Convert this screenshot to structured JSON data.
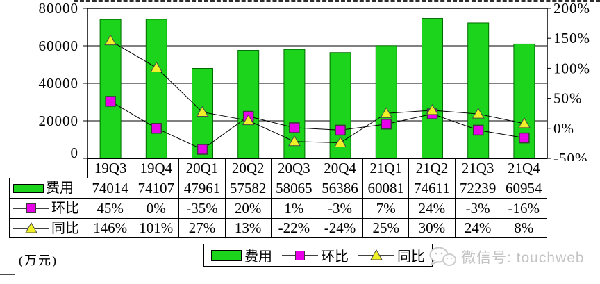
{
  "chart_data": {
    "type": "combo",
    "title": "",
    "categories": [
      "19Q3",
      "19Q4",
      "20Q1",
      "20Q2",
      "20Q3",
      "20Q4",
      "21Q1",
      "21Q2",
      "21Q3",
      "21Q4"
    ],
    "series": [
      {
        "name": "费用",
        "type": "bar",
        "axis": "left",
        "marker": "bar",
        "values": [
          74014,
          74107,
          47961,
          57582,
          58065,
          56386,
          60081,
          74611,
          72239,
          60954
        ]
      },
      {
        "name": "环比",
        "type": "line",
        "axis": "right",
        "marker": "square",
        "values": [
          45,
          0,
          -35,
          20,
          1,
          -3,
          7,
          24,
          -3,
          -16
        ]
      },
      {
        "name": "同比",
        "type": "line",
        "axis": "right",
        "marker": "triangle",
        "values": [
          146,
          101,
          27,
          13,
          -22,
          -24,
          25,
          30,
          24,
          8
        ]
      }
    ],
    "left_axis": {
      "min": 0,
      "max": 80000,
      "tick_values": [
        80000,
        60000,
        40000,
        20000,
        0
      ],
      "tick_labels": [
        "80000",
        "60000",
        "40000",
        "20000",
        "0"
      ]
    },
    "right_axis": {
      "min": -50,
      "max": 200,
      "tick_values": [
        200,
        150,
        100,
        50,
        0,
        -50
      ],
      "tick_labels": [
        "200%",
        "150%",
        "100%",
        "50%",
        "0%",
        "-50%"
      ]
    },
    "grid": true,
    "legend_position": "bottom",
    "unit": "万元"
  },
  "table": {
    "header": [
      "19Q3",
      "19Q4",
      "20Q1",
      "20Q2",
      "20Q3",
      "20Q4",
      "21Q1",
      "21Q2",
      "21Q3",
      "21Q4"
    ],
    "rows": [
      {
        "label": "费用",
        "marker": "bar",
        "values": [
          "74014",
          "74107",
          "47961",
          "57582",
          "58065",
          "56386",
          "60081",
          "74611",
          "72239",
          "60954"
        ]
      },
      {
        "label": "环比",
        "marker": "square",
        "values": [
          "45%",
          "0%",
          "-35%",
          "20%",
          "1%",
          "-3%",
          "7%",
          "24%",
          "-3%",
          "-16%"
        ]
      },
      {
        "label": "同比",
        "marker": "triangle",
        "values": [
          "146%",
          "101%",
          "27%",
          "13%",
          "-22%",
          "-24%",
          "25%",
          "30%",
          "24%",
          "8%"
        ]
      }
    ]
  },
  "footer": {
    "unit_label": "(万元)",
    "legend": [
      {
        "label": "费用",
        "marker": "bar"
      },
      {
        "label": "环比",
        "marker": "square"
      },
      {
        "label": "同比",
        "marker": "triangle"
      }
    ],
    "watermark": {
      "icon": "wechat-icon",
      "label": "微信号: touchweb"
    }
  },
  "colors": {
    "bar_fill": "#1bd41b",
    "bar_stroke": "#006b00",
    "square_fill": "#e800e8",
    "square_stroke": "#3a3a3a",
    "triangle_fill": "#f0f028",
    "triangle_stroke": "#4a4a4a",
    "line": "#000000",
    "axis": "#000000",
    "watermark": "#c3c3c3"
  }
}
